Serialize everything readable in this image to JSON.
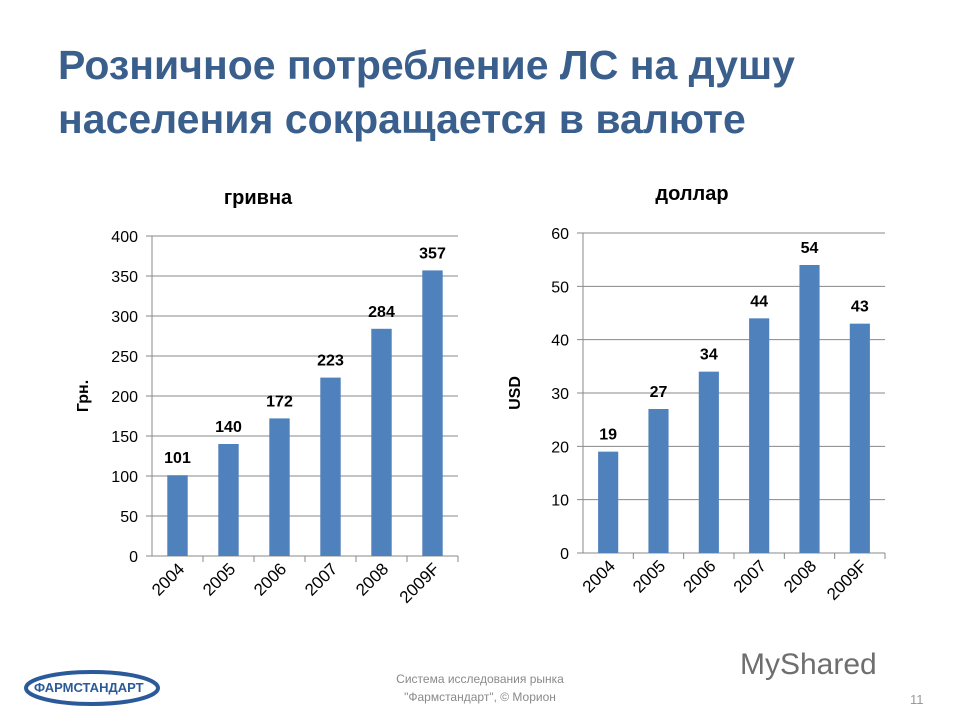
{
  "slide": {
    "title": "Розничное потребление ЛС на душу населения сокращается в валюте",
    "footer": [
      "Система исследования рынка",
      "\"Фармстандарт\", © Морион"
    ],
    "logo_text": "ФАРМСТАНДАРТ",
    "watermark": "MyShared",
    "page_number": "11"
  },
  "colors": {
    "title": "#3a5f8c",
    "bar": "#4f81bd"
  },
  "chart_data": [
    {
      "type": "bar",
      "title": "гривна",
      "ylabel": "Грн.",
      "xlabel": "",
      "categories": [
        "2004",
        "2005",
        "2006",
        "2007",
        "2008",
        "2009F"
      ],
      "values": [
        101,
        140,
        172,
        223,
        284,
        357
      ],
      "ylim": [
        0,
        400
      ],
      "yticks": [
        0,
        50,
        100,
        150,
        200,
        250,
        300,
        350,
        400
      ],
      "grid": true
    },
    {
      "type": "bar",
      "title": "доллар",
      "ylabel": "USD",
      "xlabel": "",
      "categories": [
        "2004",
        "2005",
        "2006",
        "2007",
        "2008",
        "2009F"
      ],
      "values": [
        19,
        27,
        34,
        44,
        54,
        43
      ],
      "ylim": [
        0,
        60
      ],
      "yticks": [
        0,
        10,
        20,
        30,
        40,
        50,
        60
      ],
      "grid": true
    }
  ]
}
